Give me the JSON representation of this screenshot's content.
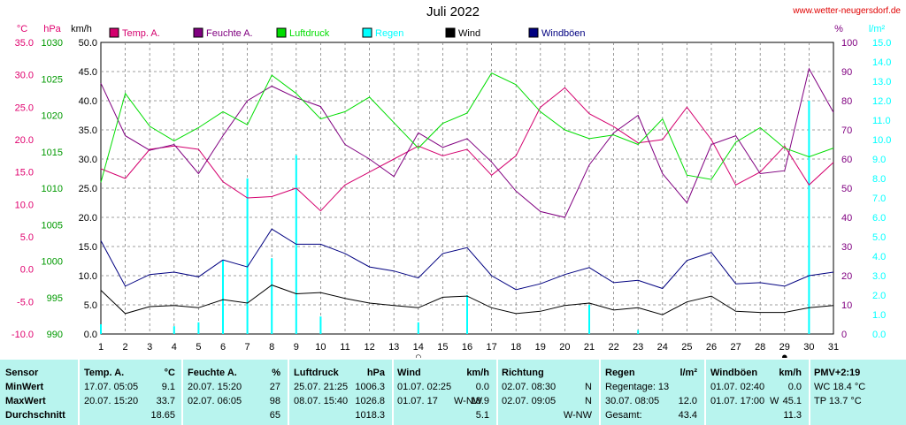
{
  "header": {
    "title": "Juli 2022",
    "site": "www.wetter-neugersdorf.de"
  },
  "axis_labels": {
    "left_temp_unit": "°C",
    "left_press_unit": "hPa",
    "left_wind_unit": "km/h",
    "right_hum_unit": "%",
    "right_rain_unit": "l/m²"
  },
  "colors": {
    "temp": "#d4006e",
    "humidity": "#800080",
    "pressure": "#00dd00",
    "rain": "#00ffff",
    "wind": "#000000",
    "gust": "#000080",
    "temp_axis": "#e0006e",
    "press_axis": "#009900",
    "panel_bg": "#b8f4ee",
    "grid": "#808080"
  },
  "chart_data": {
    "type": "line",
    "title": "Juli 2022",
    "x": [
      1,
      2,
      3,
      4,
      5,
      6,
      7,
      8,
      9,
      10,
      11,
      12,
      13,
      14,
      15,
      16,
      17,
      18,
      19,
      20,
      21,
      22,
      23,
      24,
      25,
      26,
      27,
      28,
      29,
      30,
      31
    ],
    "x_range": [
      1,
      31
    ],
    "axes": {
      "temp_c": {
        "range": [
          -10,
          35
        ],
        "ticks": [
          "35.0",
          "30.0",
          "25.0",
          "20.0",
          "15.0",
          "10.0",
          "5.0",
          "0.0",
          "-5.0",
          "-10.0"
        ]
      },
      "pressure_hpa": {
        "range": [
          990,
          1030
        ],
        "ticks": [
          "1030",
          "1025",
          "1020",
          "1015",
          "1010",
          "1005",
          "1000",
          "995",
          "990"
        ]
      },
      "wind_kmh": {
        "range": [
          0,
          50
        ],
        "ticks": [
          "50.0",
          "45.0",
          "40.0",
          "35.0",
          "30.0",
          "25.0",
          "20.0",
          "15.0",
          "10.0",
          "5.0",
          "0.0"
        ]
      },
      "humidity_pct": {
        "range": [
          0,
          100
        ],
        "ticks": [
          "100",
          "90",
          "80",
          "70",
          "60",
          "50",
          "40",
          "30",
          "20",
          "10",
          "0"
        ]
      },
      "rain_lm2": {
        "range": [
          0,
          15
        ],
        "ticks": [
          "15.0",
          "14.0",
          "13.0",
          "12.0",
          "11.0",
          "10.0",
          "9.0",
          "8.0",
          "7.0",
          "6.0",
          "5.0",
          "4.0",
          "3.0",
          "2.0",
          "1.0",
          "0.0"
        ]
      }
    },
    "grid": true,
    "legend_position": "top",
    "series": [
      {
        "name": "Temp. A.",
        "axis": "temp_c",
        "kind": "line",
        "values": [
          15.5,
          14.0,
          18.5,
          19.0,
          18.5,
          13.5,
          11.0,
          11.2,
          12.5,
          9.0,
          13.0,
          15.0,
          17.0,
          19.0,
          17.5,
          18.5,
          14.5,
          17.5,
          25.0,
          28.0,
          24.0,
          22.0,
          19.5,
          20.0,
          25.0,
          20.0,
          13.0,
          15.0,
          19.0,
          13.0,
          16.5
        ]
      },
      {
        "name": "Feuchte A.",
        "axis": "humidity_pct",
        "kind": "line",
        "values": [
          86,
          68,
          63,
          65,
          55,
          68,
          80,
          85,
          81,
          78,
          65,
          60,
          54,
          69,
          64,
          67,
          59,
          49,
          42,
          40,
          58,
          69,
          75,
          55,
          45,
          65,
          68,
          55,
          56,
          91,
          76
        ]
      },
      {
        "name": "Luftdruck",
        "axis": "pressure_hpa",
        "kind": "line",
        "values": [
          1010.8,
          1023.0,
          1018.5,
          1016.5,
          1018.3,
          1020.5,
          1018.7,
          1025.5,
          1023.0,
          1019.5,
          1020.5,
          1022.5,
          1019.0,
          1015.5,
          1018.9,
          1020.3,
          1025.8,
          1024.2,
          1020.5,
          1018.0,
          1016.8,
          1017.3,
          1016.0,
          1019.5,
          1011.8,
          1011.2,
          1016.3,
          1018.3,
          1015.5,
          1014.3,
          1015.5
        ]
      },
      {
        "name": "Regen",
        "axis": "rain_lm2",
        "kind": "bar",
        "values": [
          0.5,
          0.0,
          0.0,
          0.4,
          0.6,
          3.8,
          8.0,
          3.9,
          9.2,
          0.9,
          0.0,
          0.0,
          0.0,
          0.6,
          0.0,
          2.0,
          0.0,
          0.0,
          0.0,
          0.0,
          1.5,
          0.0,
          0.2,
          0.0,
          0.0,
          0.0,
          0.0,
          0.0,
          0.0,
          12.0,
          0.0
        ]
      },
      {
        "name": "Wind",
        "axis": "wind_kmh",
        "kind": "line",
        "values": [
          7.5,
          3.5,
          4.7,
          4.9,
          4.5,
          5.9,
          5.3,
          8.4,
          6.9,
          7.1,
          6.1,
          5.3,
          4.9,
          4.5,
          6.3,
          6.5,
          4.5,
          3.5,
          3.9,
          4.9,
          5.3,
          4.1,
          4.5,
          3.3,
          5.5,
          6.5,
          3.9,
          3.7,
          3.7,
          4.5,
          4.9
        ]
      },
      {
        "name": "Windböen",
        "axis": "wind_kmh",
        "kind": "line",
        "values": [
          16.0,
          8.2,
          10.2,
          10.6,
          9.8,
          12.7,
          11.5,
          18.0,
          15.4,
          15.4,
          13.8,
          11.5,
          10.8,
          9.6,
          13.8,
          14.8,
          10.0,
          7.6,
          8.6,
          10.2,
          11.4,
          8.8,
          9.2,
          7.8,
          12.6,
          14.0,
          8.6,
          8.8,
          8.2,
          10.0,
          10.6
        ]
      }
    ],
    "markers": [
      {
        "day": 14,
        "symbol": "○"
      },
      {
        "day": 29,
        "symbol": "●"
      }
    ]
  },
  "table": {
    "sensor": {
      "title": "Sensor",
      "rows": [
        "MinWert",
        "MaxWert",
        "Durchschnitt"
      ]
    },
    "temp": {
      "title": "Temp. A.",
      "unit": "°C",
      "min_date": "17.07.  05:05",
      "min_val": "9.1",
      "max_date": "20.07.  15:20",
      "max_val": "33.7",
      "avg_val": "18.65"
    },
    "hum": {
      "title": "Feuchte A.",
      "unit": "%",
      "min_date": "20.07.  15:20",
      "min_val": "27",
      "max_date": "02.07.  06:05",
      "max_val": "98",
      "avg_val": "65"
    },
    "press": {
      "title": "Luftdruck",
      "unit": "hPa",
      "min_date": "25.07.  21:25",
      "min_val": "1006.3",
      "max_date": "08.07.  15:40",
      "max_val": "1026.8",
      "avg_val": "1018.3"
    },
    "wind": {
      "title": "Wind",
      "unit": "km/h",
      "min_date": "01.07.  02:25",
      "min_val": "0.0",
      "max_date": "01.07.  17",
      "max_dir": "W-NW",
      "max_val": "18.9",
      "avg_val": "5.1"
    },
    "dir": {
      "title": "Richtung",
      "min_date": "02.07.  08:30",
      "min_val": "N",
      "max_date": "02.07.  09:05",
      "max_val": "N",
      "avg_val": "W-NW"
    },
    "rain": {
      "title": "Regen",
      "unit": "l/m²",
      "days_label": "Regentage: 13",
      "max_date": "30.07.  08:05",
      "max_val": "12.0",
      "total_label": "Gesamt:",
      "total_val": "43.4"
    },
    "gust": {
      "title": "Windböen",
      "unit": "km/h",
      "min_date": "01.07.  02:40",
      "min_val": "0.0",
      "max_date": "01.07.  17:00",
      "max_dir": "W",
      "max_val": "45.1",
      "avg_val": "11.3"
    },
    "pmv": {
      "title": "PMV+2:19",
      "wc": "WC 18.4 °C",
      "tp": "TP 13.7 °C"
    }
  }
}
